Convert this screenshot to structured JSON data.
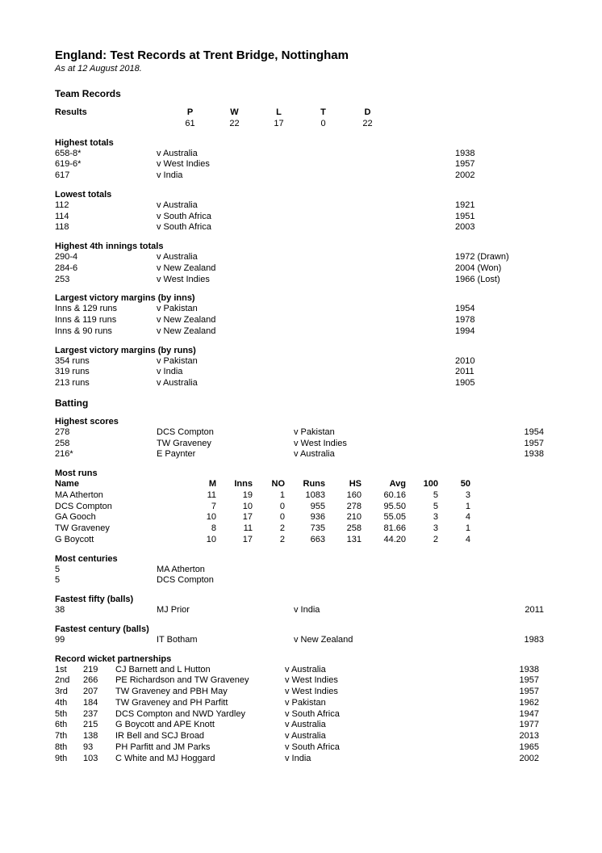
{
  "title": "England: Test Records at Trent Bridge, Nottingham",
  "subtitle": "As at 12 August 2018.",
  "team_records_heading": "Team Records",
  "results": {
    "label": "Results",
    "headers": {
      "P": "P",
      "W": "W",
      "L": "L",
      "T": "T",
      "D": "D"
    },
    "values": {
      "P": "61",
      "W": "22",
      "L": "17",
      "T": "0",
      "D": "22"
    }
  },
  "highest_totals": {
    "title": "Highest totals",
    "rows": [
      {
        "score": "658-8*",
        "opp": "v Australia",
        "year": "1938"
      },
      {
        "score": "619-6*",
        "opp": "v West Indies",
        "year": "1957"
      },
      {
        "score": "617",
        "opp": "v India",
        "year": "2002"
      }
    ]
  },
  "lowest_totals": {
    "title": "Lowest totals",
    "rows": [
      {
        "score": "112",
        "opp": "v Australia",
        "year": "1921"
      },
      {
        "score": "114",
        "opp": "v South Africa",
        "year": "1951"
      },
      {
        "score": "118",
        "opp": "v South Africa",
        "year": "2003"
      }
    ]
  },
  "highest_4th": {
    "title": "Highest 4th innings totals",
    "rows": [
      {
        "score": "290-4",
        "opp": "v Australia",
        "year": "1972 (Drawn)"
      },
      {
        "score": "284-6",
        "opp": "v New Zealand",
        "year": "2004 (Won)"
      },
      {
        "score": "253",
        "opp": "v West Indies",
        "year": "1966 (Lost)"
      }
    ]
  },
  "margin_inns": {
    "title": "Largest victory margins (by inns)",
    "rows": [
      {
        "score": "Inns & 129 runs",
        "opp": "v Pakistan",
        "year": "1954"
      },
      {
        "score": "Inns & 119 runs",
        "opp": "v New Zealand",
        "year": "1978"
      },
      {
        "score": "Inns & 90 runs",
        "opp": "v New Zealand",
        "year": "1994"
      }
    ]
  },
  "margin_runs": {
    "title": "Largest victory margins (by runs)",
    "rows": [
      {
        "score": "354 runs",
        "opp": "v Pakistan",
        "year": "2010"
      },
      {
        "score": "319 runs",
        "opp": "v India",
        "year": "2011"
      },
      {
        "score": "213 runs",
        "opp": "v Australia",
        "year": "1905"
      }
    ]
  },
  "batting_heading": "Batting",
  "highest_scores": {
    "title": "Highest scores",
    "rows": [
      {
        "score": "278",
        "name": "DCS Compton",
        "opp": "v Pakistan",
        "year": "1954"
      },
      {
        "score": "258",
        "name": "TW Graveney",
        "opp": "v West Indies",
        "year": "1957"
      },
      {
        "score": "216*",
        "name": "E Paynter",
        "opp": "v Australia",
        "year": "1938"
      }
    ]
  },
  "most_runs": {
    "title": "Most runs",
    "headers": {
      "name": "Name",
      "m": "M",
      "inns": "Inns",
      "no": "NO",
      "runs": "Runs",
      "hs": "HS",
      "avg": "Avg",
      "c100": "100",
      "c50": "50"
    },
    "rows": [
      {
        "name": "MA Atherton",
        "m": "11",
        "inns": "19",
        "no": "1",
        "runs": "1083",
        "hs": "160",
        "avg": "60.16",
        "c100": "5",
        "c50": "3"
      },
      {
        "name": "DCS Compton",
        "m": "7",
        "inns": "10",
        "no": "0",
        "runs": "955",
        "hs": "278",
        "avg": "95.50",
        "c100": "5",
        "c50": "1"
      },
      {
        "name": "GA Gooch",
        "m": "10",
        "inns": "17",
        "no": "0",
        "runs": "936",
        "hs": "210",
        "avg": "55.05",
        "c100": "3",
        "c50": "4"
      },
      {
        "name": "TW Graveney",
        "m": "8",
        "inns": "11",
        "no": "2",
        "runs": "735",
        "hs": "258",
        "avg": "81.66",
        "c100": "3",
        "c50": "1"
      },
      {
        "name": "G Boycott",
        "m": "10",
        "inns": "17",
        "no": "2",
        "runs": "663",
        "hs": "131",
        "avg": "44.20",
        "c100": "2",
        "c50": "4"
      }
    ]
  },
  "most_centuries": {
    "title": "Most centuries",
    "rows": [
      {
        "count": "5",
        "name": "MA Atherton"
      },
      {
        "count": "5",
        "name": "DCS Compton"
      }
    ]
  },
  "fastest_fifty": {
    "title": "Fastest fifty (balls)",
    "rows": [
      {
        "score": "38",
        "name": "MJ Prior",
        "opp": "v India",
        "year": "2011"
      }
    ]
  },
  "fastest_century": {
    "title": "Fastest century (balls)",
    "rows": [
      {
        "score": "99",
        "name": "IT Botham",
        "opp": "v New Zealand",
        "year": "1983"
      }
    ]
  },
  "partnerships": {
    "title": "Record wicket partnerships",
    "rows": [
      {
        "ord": "1st",
        "runs": "219",
        "names": "CJ Barnett and L Hutton",
        "opp": "v Australia",
        "year": "1938"
      },
      {
        "ord": "2nd",
        "runs": "266",
        "names": "PE Richardson and TW Graveney",
        "opp": "v West Indies",
        "year": "1957"
      },
      {
        "ord": "3rd",
        "runs": "207",
        "names": "TW Graveney and PBH May",
        "opp": "v West Indies",
        "year": "1957"
      },
      {
        "ord": "4th",
        "runs": "184",
        "names": "TW Graveney and PH Parfitt",
        "opp": "v Pakistan",
        "year": "1962"
      },
      {
        "ord": "5th",
        "runs": "237",
        "names": "DCS Compton and NWD Yardley",
        "opp": "v South Africa",
        "year": "1947"
      },
      {
        "ord": "6th",
        "runs": "215",
        "names": "G Boycott and APE Knott",
        "opp": "v Australia",
        "year": "1977"
      },
      {
        "ord": "7th",
        "runs": "138",
        "names": "IR Bell and SCJ Broad",
        "opp": "v Australia",
        "year": "2013"
      },
      {
        "ord": "8th",
        "runs": "93",
        "names": "PH Parfitt and JM Parks",
        "opp": "v South Africa",
        "year": "1965"
      },
      {
        "ord": "9th",
        "runs": "103",
        "names": "C White and MJ Hoggard",
        "opp": "v India",
        "year": "2002"
      }
    ]
  }
}
